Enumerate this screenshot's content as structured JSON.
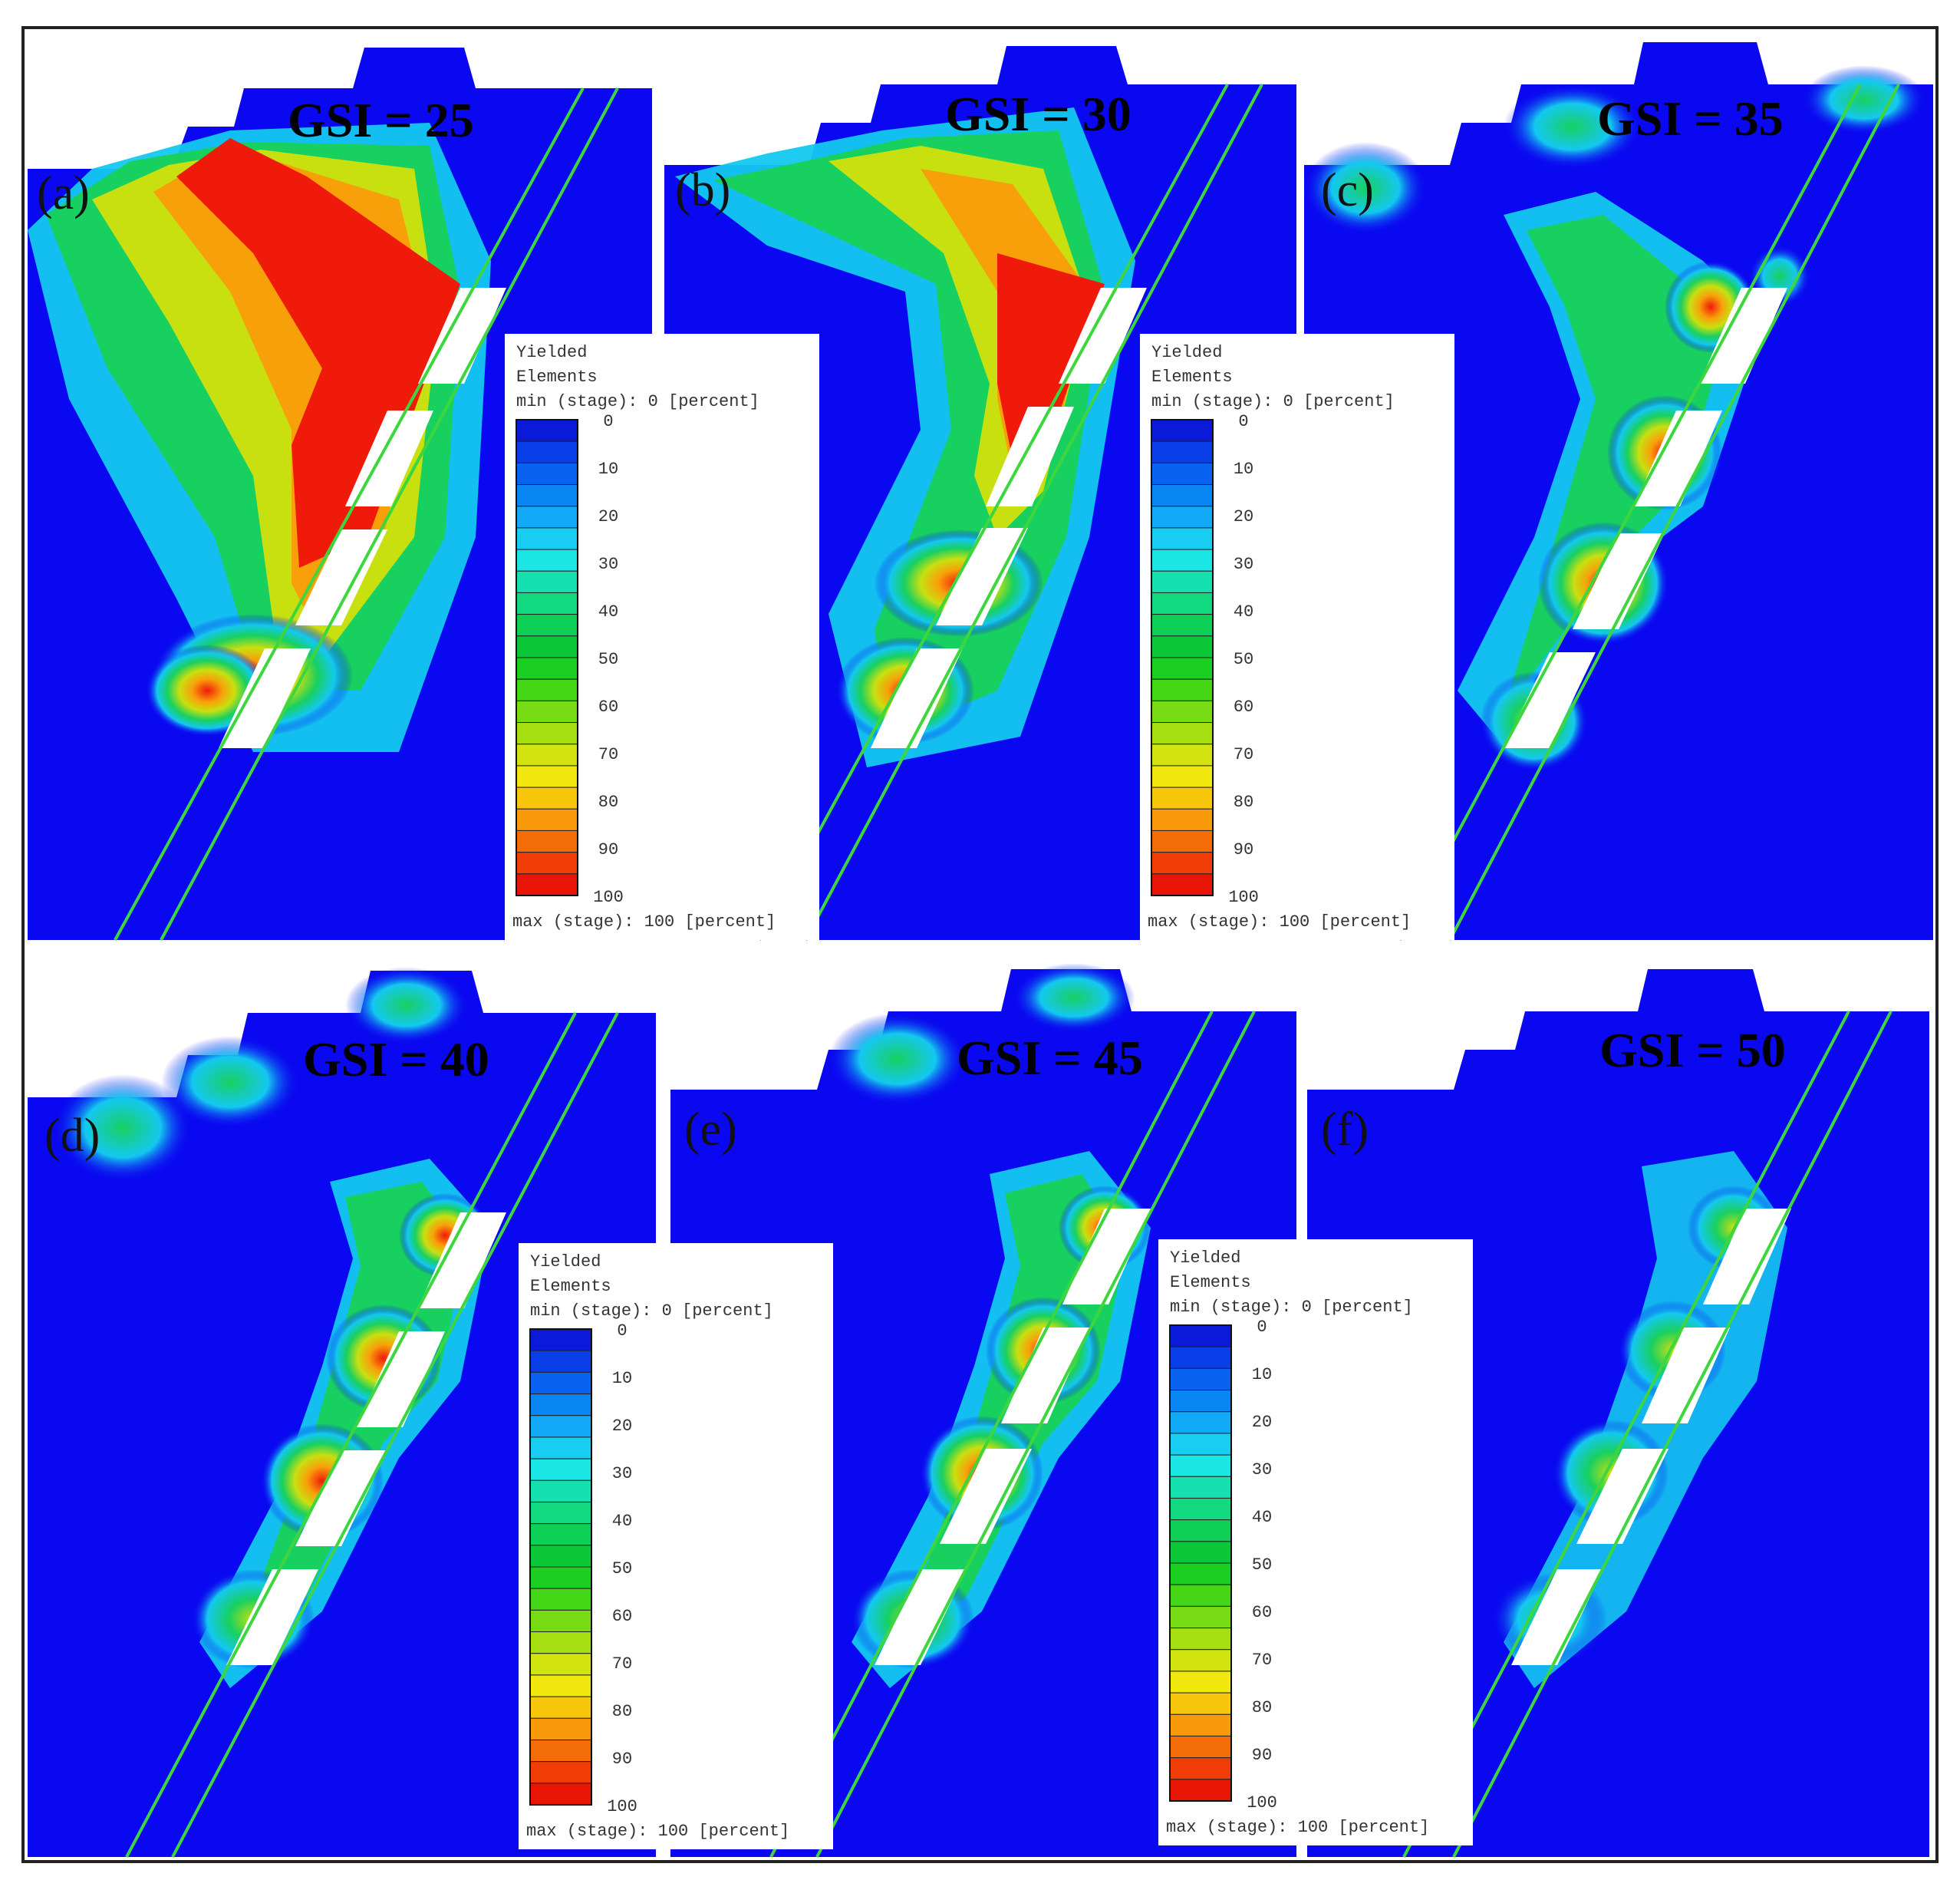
{
  "panels": [
    {
      "id": "a",
      "label": "(a)",
      "title": "GSI = 25"
    },
    {
      "id": "b",
      "label": "(b)",
      "title": "GSI = 30"
    },
    {
      "id": "c",
      "label": "(c)",
      "title": "GSI = 35"
    },
    {
      "id": "d",
      "label": "(d)",
      "title": "GSI = 40"
    },
    {
      "id": "e",
      "label": "(e)",
      "title": "GSI = 45"
    },
    {
      "id": "f",
      "label": "(f)",
      "title": "GSI = 50"
    }
  ],
  "legend": {
    "title_line1": "Yielded",
    "title_line2": "Elements",
    "min_text": "min (stage): 0 [percent]",
    "max_text": "max (stage): 100 [percent]",
    "ticks": [
      "0",
      "10",
      "20",
      "30",
      "40",
      "50",
      "60",
      "70",
      "80",
      "90",
      "100"
    ],
    "colors": [
      "#0a1ad8",
      "#0a3ee8",
      "#0a62f0",
      "#0a86f4",
      "#12aaf6",
      "#18ccf2",
      "#1ae6e6",
      "#16e0b0",
      "#12d880",
      "#0ed056",
      "#0cc838",
      "#1ace22",
      "#46d618",
      "#78dc14",
      "#a6e012",
      "#d2e410",
      "#f0e80e",
      "#f8c60c",
      "#f89a0a",
      "#f46c08",
      "#f03c06",
      "#e81406"
    ],
    "background_color": "#0a08f0"
  }
}
